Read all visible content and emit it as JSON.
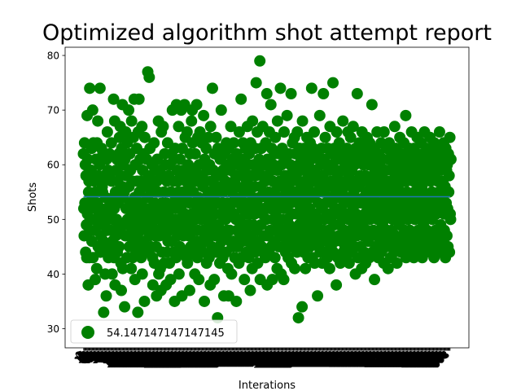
{
  "chart_data": {
    "type": "scatter",
    "title": "Optimized algorithm shot attempt report",
    "xlabel": "Interations",
    "ylabel": "Shots",
    "ylim": [
      26.5,
      81.5
    ],
    "xlim": [
      -49.9,
      1048.9
    ],
    "yticks": [
      30,
      40,
      50,
      60,
      70,
      80
    ],
    "grid": false,
    "legend_position": "lower-left",
    "point_color": "#008000",
    "mean_line_color": "#1f77b4",
    "mean": 54.147147147147145,
    "legend_label": "54.147147147147145",
    "n_points": 999,
    "x_start": 0,
    "x_step": 1,
    "y": [
      62,
      52,
      47,
      64,
      53,
      60,
      44,
      58,
      49,
      43,
      69,
      51,
      61,
      38,
      55,
      57,
      43,
      74,
      50,
      48,
      52,
      59,
      63,
      46,
      54,
      70,
      43,
      64,
      50,
      57,
      58,
      48,
      39,
      55,
      61,
      52,
      41,
      64,
      53,
      68,
      45,
      58,
      49,
      51,
      60,
      74,
      44,
      52,
      47,
      63,
      50,
      56,
      55,
      62,
      46,
      33,
      57,
      58,
      49,
      40,
      54,
      51,
      36,
      61,
      48,
      66,
      52,
      59,
      43,
      45,
      58,
      62,
      53,
      44,
      48,
      51,
      64,
      57,
      40,
      46,
      50,
      54,
      72,
      43,
      52,
      68,
      38,
      55,
      47,
      59,
      50,
      61,
      44,
      57,
      53,
      49,
      62,
      45,
      65,
      48,
      67,
      58,
      42,
      37,
      63,
      56,
      71,
      41,
      54,
      60,
      49,
      55,
      34,
      61,
      47,
      66,
      52,
      58,
      43,
      64,
      50,
      47,
      52,
      70,
      56,
      45,
      62,
      49,
      59,
      53,
      41,
      68,
      48,
      57,
      43,
      51,
      65,
      46,
      72,
      54,
      39,
      60,
      47,
      52,
      44,
      63,
      57,
      50,
      33,
      66,
      49,
      72,
      55,
      45,
      61,
      57,
      48,
      43,
      53,
      67,
      40,
      59,
      51,
      46,
      62,
      52,
      35,
      65,
      49,
      57,
      56,
      44,
      61,
      48,
      54,
      77,
      50,
      44,
      58,
      76,
      47,
      63,
      52,
      45,
      55,
      56,
      49,
      60,
      43,
      38,
      51,
      57,
      64,
      42,
      53,
      47,
      59,
      50,
      45,
      36,
      57,
      61,
      48,
      55,
      68,
      40,
      52,
      47,
      59,
      41,
      50,
      37,
      66,
      53,
      44,
      58,
      51,
      67,
      49,
      55,
      42,
      62,
      47,
      60,
      50,
      38,
      53,
      57,
      44,
      64,
      46,
      51,
      58,
      48,
      42,
      60,
      52,
      39,
      55,
      49,
      62,
      46,
      70,
      53,
      44,
      57,
      61,
      50,
      35,
      63,
      48,
      54,
      43,
      71,
      52,
      59,
      47,
      57,
      55,
      67,
      40,
      50,
      45,
      61,
      58,
      52,
      70,
      49,
      36,
      63,
      55,
      53,
      47,
      59,
      44,
      71,
      51,
      65,
      48,
      57,
      54,
      43,
      66,
      42,
      50,
      60,
      47,
      56,
      53,
      37,
      62,
      49,
      45,
      58,
      68,
      51,
      70,
      64,
      44,
      55,
      48,
      59,
      53,
      40,
      62,
      50,
      46,
      57,
      71,
      52,
      43,
      65,
      48,
      54,
      39,
      60,
      51,
      66,
      45,
      58,
      50,
      46,
      64,
      53,
      44,
      56,
      48,
      69,
      51,
      35,
      61,
      47,
      57,
      53,
      63,
      42,
      52,
      59,
      46,
      55,
      65,
      49,
      43,
      60,
      54,
      38,
      67,
      50,
      57,
      45,
      52,
      74,
      48,
      59,
      44,
      54,
      39,
      62,
      51,
      56,
      47,
      65,
      44,
      58,
      53,
      32,
      63,
      49,
      56,
      45,
      55,
      42,
      61,
      51,
      48,
      70,
      46,
      58,
      53,
      43,
      59,
      55,
      36,
      52,
      62,
      47,
      57,
      50,
      44,
      64,
      48,
      60,
      53,
      41,
      56,
      36,
      63,
      52,
      48,
      59,
      46,
      67,
      51,
      40,
      55,
      45,
      61,
      53,
      46,
      64,
      51,
      57,
      43,
      54,
      58,
      50,
      35,
      62,
      48,
      56,
      45,
      60,
      53,
      42,
      66,
      50,
      58,
      47,
      54,
      72,
      43,
      61,
      52,
      46,
      64,
      49,
      55,
      59,
      39,
      56,
      48,
      63,
      51,
      44,
      57,
      53,
      67,
      46,
      60,
      49,
      43,
      62,
      55,
      51,
      37,
      64,
      47,
      58,
      52,
      41,
      68,
      54,
      49,
      60,
      45,
      56,
      51,
      63,
      44,
      58,
      75,
      48,
      53,
      66,
      42,
      59,
      52,
      46,
      61,
      54,
      79,
      39,
      56,
      49,
      63,
      45,
      58,
      51,
      67,
      44,
      55,
      60,
      47,
      52,
      57,
      43,
      64,
      50,
      54,
      73,
      38,
      61,
      47,
      58,
      55,
      44,
      66,
      52,
      48,
      59,
      71,
      45,
      63,
      53,
      39,
      57,
      50,
      60,
      46,
      55,
      62,
      43,
      65,
      51,
      48,
      54,
      59,
      41,
      68,
      49,
      56,
      52,
      45,
      62,
      57,
      47,
      74,
      54,
      40,
      60,
      50,
      63,
      45,
      57,
      53,
      39,
      66,
      48,
      52,
      58,
      44,
      61,
      55,
      46,
      69,
      50,
      58,
      43,
      56,
      62,
      49,
      54,
      47,
      60,
      53,
      73,
      42,
      57,
      51,
      64,
      45,
      59,
      54,
      48,
      65,
      41,
      55,
      62,
      46,
      58,
      51,
      44,
      66,
      53,
      57,
      32,
      60,
      49,
      63,
      47,
      55,
      52,
      45,
      61,
      56,
      34,
      68,
      50,
      59,
      44,
      54,
      63,
      48,
      57,
      41,
      62,
      53,
      46,
      65,
      51,
      56,
      43,
      60,
      49,
      58,
      52,
      45,
      64,
      55,
      47,
      61,
      74,
      50,
      43,
      57,
      63,
      48,
      54,
      66,
      42,
      59,
      51,
      46,
      55,
      62,
      49,
      58,
      36,
      57,
      53,
      45,
      61,
      50,
      69,
      44,
      56,
      60,
      47,
      63,
      52,
      42,
      58,
      55,
      73,
      48,
      61,
      50,
      44,
      65,
      53,
      57,
      46,
      60,
      51,
      43,
      63,
      56,
      48,
      59,
      54,
      41,
      67,
      50,
      62,
      45,
      57,
      53,
      47,
      60,
      75,
      44,
      56,
      49,
      63,
      52,
      46,
      59,
      55,
      38,
      66,
      51,
      58,
      43,
      61,
      54,
      47,
      64,
      49,
      57,
      42,
      62,
      52,
      46,
      59,
      55,
      50,
      68,
      44,
      56,
      53,
      48,
      61,
      45,
      60,
      51,
      57,
      43,
      63,
      54,
      47,
      66,
      50,
      58,
      42,
      61,
      53,
      46,
      65,
      48,
      56,
      59,
      44,
      62,
      52,
      67,
      49,
      55,
      45,
      60,
      54,
      40,
      63,
      51,
      57,
      47,
      73,
      53,
      43,
      61,
      56,
      48,
      64,
      50,
      58,
      45,
      62,
      53,
      41,
      66,
      49,
      57,
      47,
      60,
      54,
      44,
      63,
      51,
      58,
      42,
      55,
      61,
      48,
      65,
      52,
      57,
      46,
      60,
      53,
      43,
      64,
      50,
      56,
      47,
      62,
      55,
      71,
      44,
      58,
      51,
      48,
      63,
      54,
      39,
      59,
      52,
      45,
      61,
      57,
      47,
      66,
      50,
      55,
      43,
      62,
      53,
      48,
      60,
      46,
      57,
      51,
      64,
      44,
      58,
      55,
      49,
      61,
      52,
      42,
      66,
      50,
      56,
      47,
      59,
      54,
      45,
      63,
      48,
      57,
      53,
      41,
      61,
      51,
      64,
      46,
      56,
      52,
      43,
      59,
      55,
      48,
      62,
      50,
      57,
      45,
      60,
      53,
      44,
      67,
      51,
      58,
      47,
      63,
      54,
      42,
      59,
      52,
      56,
      46,
      61,
      55,
      49,
      65,
      50,
      58,
      44,
      62,
      53,
      47,
      60,
      51,
      57,
      45,
      64,
      54,
      48,
      61,
      52,
      69,
      43,
      57,
      55,
      46,
      62,
      50,
      59,
      44,
      63,
      53,
      48,
      58,
      51,
      61,
      45,
      66,
      54,
      47,
      60,
      52,
      57,
      43,
      63,
      55,
      50,
      59,
      46,
      62,
      51,
      44,
      65,
      53,
      56,
      48,
      61,
      54,
      45,
      60,
      52,
      58,
      47,
      64,
      50,
      56,
      43,
      62,
      55,
      49,
      59,
      51,
      66,
      46,
      57,
      53,
      44,
      61,
      52,
      48,
      63,
      54,
      58,
      45,
      60,
      51,
      47,
      65,
      53,
      57,
      44,
      62,
      55,
      50,
      59,
      46,
      61,
      52,
      43,
      64,
      54,
      58,
      48,
      60,
      51,
      45,
      63,
      53,
      57,
      47,
      61,
      55,
      44,
      66,
      52,
      59,
      49,
      62,
      53,
      46,
      60,
      54,
      57,
      45,
      64,
      51,
      48,
      61,
      56,
      43,
      63,
      53,
      59,
      47,
      60,
      52,
      45,
      62,
      55,
      58,
      44,
      65,
      51,
      50,
      61
    ]
  }
}
